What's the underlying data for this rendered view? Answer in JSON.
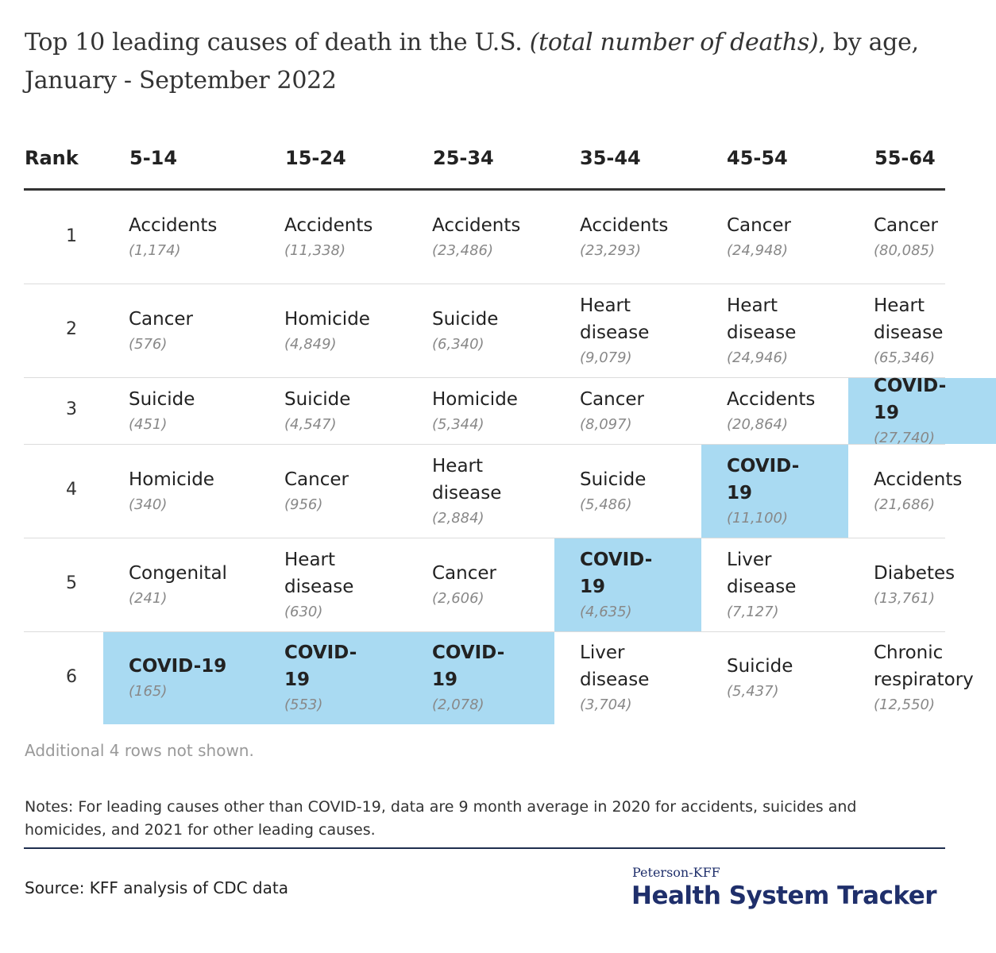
{
  "title": {
    "part1": "Top 10 leading causes of death in the U.S. ",
    "italic": "(total number of deaths)",
    "part2": ", by age, January - September 2022"
  },
  "highlight_color": "#a9daf2",
  "chart_data": {
    "type": "table",
    "columns": [
      "Rank",
      "5-14",
      "15-24",
      "25-34",
      "35-44",
      "45-54",
      "55-64"
    ],
    "rows": [
      {
        "rank": "1",
        "cells": [
          {
            "cause": "Accidents",
            "count": "(1,174)"
          },
          {
            "cause": "Accidents",
            "count": "(11,338)"
          },
          {
            "cause": "Accidents",
            "count": "(23,486)"
          },
          {
            "cause": "Accidents",
            "count": "(23,293)"
          },
          {
            "cause": "Cancer",
            "count": "(24,948)"
          },
          {
            "cause": "Cancer",
            "count": "(80,085)"
          }
        ]
      },
      {
        "rank": "2",
        "cells": [
          {
            "cause": "Cancer",
            "count": "(576)"
          },
          {
            "cause": "Homicide",
            "count": "(4,849)"
          },
          {
            "cause": "Suicide",
            "count": "(6,340)"
          },
          {
            "cause": "Heart disease",
            "count": "(9,079)"
          },
          {
            "cause": "Heart disease",
            "count": "(24,946)"
          },
          {
            "cause": "Heart disease",
            "count": "(65,346)"
          }
        ]
      },
      {
        "rank": "3",
        "cells": [
          {
            "cause": "Suicide",
            "count": "(451)"
          },
          {
            "cause": "Suicide",
            "count": "(4,547)"
          },
          {
            "cause": "Homicide",
            "count": "(5,344)"
          },
          {
            "cause": "Cancer",
            "count": "(8,097)"
          },
          {
            "cause": "Accidents",
            "count": "(20,864)"
          },
          {
            "cause": "COVID-19",
            "count": "(27,740)",
            "highlight": true
          }
        ]
      },
      {
        "rank": "4",
        "cells": [
          {
            "cause": "Homicide",
            "count": "(340)"
          },
          {
            "cause": "Cancer",
            "count": "(956)"
          },
          {
            "cause": "Heart disease",
            "count": "(2,884)"
          },
          {
            "cause": "Suicide",
            "count": "(5,486)"
          },
          {
            "cause": "COVID-19",
            "count": "(11,100)",
            "highlight": true
          },
          {
            "cause": "Accidents",
            "count": "(21,686)"
          }
        ]
      },
      {
        "rank": "5",
        "cells": [
          {
            "cause": "Congenital",
            "count": "(241)"
          },
          {
            "cause": "Heart disease",
            "count": "(630)"
          },
          {
            "cause": "Cancer",
            "count": "(2,606)"
          },
          {
            "cause": "COVID-19",
            "count": "(4,635)",
            "highlight": true
          },
          {
            "cause": "Liver disease",
            "count": "(7,127)"
          },
          {
            "cause": "Diabetes",
            "count": "(13,761)"
          }
        ]
      },
      {
        "rank": "6",
        "cells": [
          {
            "cause": "COVID-19",
            "count": "(165)",
            "highlight": true
          },
          {
            "cause": "COVID-19",
            "count": "(553)",
            "highlight": true
          },
          {
            "cause": "COVID-19",
            "count": "(2,078)",
            "highlight": true
          },
          {
            "cause": "Liver disease",
            "count": "(3,704)"
          },
          {
            "cause": "Suicide",
            "count": "(5,437)"
          },
          {
            "cause": "Chronic respiratory",
            "count": "(12,550)"
          }
        ]
      }
    ]
  },
  "more_rows_note": "Additional 4 rows not shown.",
  "notes": "Notes: For leading causes other than COVID-19, data are 9 month average in 2020 for accidents, suicides and homicides, and 2021 for other leading causes.",
  "source": "Source: KFF analysis of CDC data",
  "logo": {
    "small": "Peterson-KFF",
    "big": "Health System Tracker"
  }
}
